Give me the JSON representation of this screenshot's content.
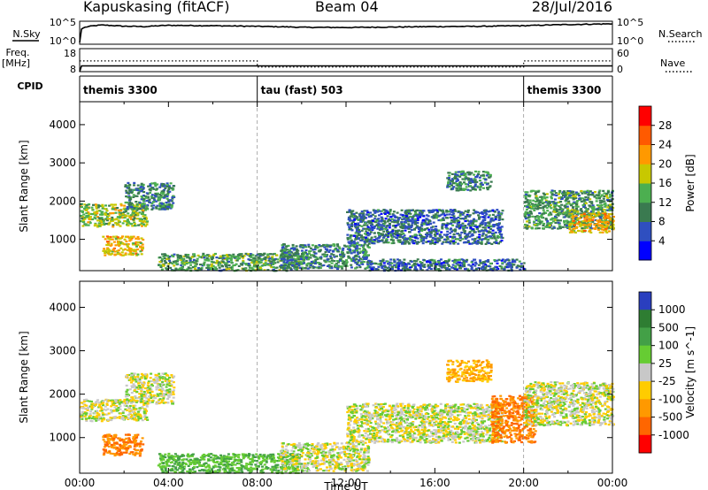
{
  "header": {
    "station": "Kapuskasing (fitACF)",
    "beam": "Beam 04",
    "date": "28/Jul/2016"
  },
  "colors": {
    "power_scale": [
      "#0000ff",
      "#2f4fc0",
      "#3a7a50",
      "#4caf50",
      "#c8c800",
      "#ff9900",
      "#ff5a00",
      "#ff0000"
    ],
    "velocity_scale": [
      "#2a3fbf",
      "#2e7d32",
      "#43a047",
      "#66cc33",
      "#c8c8c8",
      "#ffcc00",
      "#ff9900",
      "#ff6600",
      "#ff0000"
    ],
    "ground_scatter": "#c8c8c8"
  },
  "chart_data": [
    {
      "type": "line",
      "panel": "noise",
      "left_label": "N.Sky",
      "right_label": "N.Search",
      "left_ticks": [
        "10^5",
        "10^0"
      ],
      "right_ticks": [
        "10^5",
        "10^0"
      ],
      "log_scale": true,
      "series": [
        {
          "name": "N.Sky",
          "style": "solid",
          "x": [
            "00:00",
            "00:15",
            "01:00",
            "02:00",
            "03:00",
            "04:00",
            "06:00",
            "08:00",
            "10:00",
            "12:00",
            "14:00",
            "16:00",
            "18:00",
            "20:00",
            "22:00",
            "24:00"
          ],
          "values": [
            1,
            8000,
            30000,
            15000,
            12000,
            25000,
            20000,
            14000,
            8000,
            7000,
            9000,
            12000,
            14000,
            20000,
            40000,
            60000
          ]
        },
        {
          "name": "N.Search",
          "style": "dotted",
          "x": [],
          "values": []
        }
      ]
    },
    {
      "type": "line",
      "panel": "frequency",
      "left_label": "Freq. [MHz]",
      "right_label": "Nave",
      "left_ticks": [
        18,
        8
      ],
      "right_ticks": [
        60,
        0
      ],
      "series": [
        {
          "name": "Freq.",
          "style": "solid",
          "x": [
            "00:00",
            "00:05",
            "08:00",
            "24:00"
          ],
          "values": [
            8,
            10.5,
            10.5,
            10.5
          ]
        },
        {
          "name": "Nave",
          "style": "dotted",
          "x": [
            "00:00",
            "08:00",
            "08:00",
            "20:00",
            "20:00",
            "24:00"
          ],
          "values": [
            28,
            28,
            12,
            12,
            28,
            28
          ]
        }
      ]
    },
    {
      "type": "table",
      "panel": "cpid",
      "label": "CPID",
      "segments": [
        {
          "start": "00:00",
          "end": "08:00",
          "label": "themis 3300"
        },
        {
          "start": "08:00",
          "end": "20:00",
          "label": "tau (fast) 503"
        },
        {
          "start": "20:00",
          "end": "24:00",
          "label": "themis 3300"
        }
      ]
    },
    {
      "type": "heatmap",
      "panel": "power",
      "ylabel": "Slant Range [km]",
      "yticks": [
        1000,
        2000,
        3000,
        4000
      ],
      "ylim": [
        180,
        4600
      ],
      "xlim": [
        "00:00",
        "24:00"
      ],
      "colorbar": {
        "label": "Power [dB]",
        "ticks": [
          4,
          8,
          12,
          16,
          20,
          24,
          28
        ],
        "range": [
          0,
          30
        ]
      },
      "regions": [
        {
          "t0": 0.0,
          "t1": 3.0,
          "r0": 1350,
          "r1": 1950,
          "level": 16
        },
        {
          "t0": 1.0,
          "t1": 2.8,
          "r0": 600,
          "r1": 1100,
          "level": 20
        },
        {
          "t0": 2.0,
          "t1": 4.2,
          "r0": 1800,
          "r1": 2500,
          "level": 10
        },
        {
          "t0": 3.5,
          "t1": 10.0,
          "r0": 200,
          "r1": 650,
          "level": 12
        },
        {
          "t0": 9.0,
          "t1": 13.0,
          "r0": 250,
          "r1": 900,
          "level": 10
        },
        {
          "t0": 12.0,
          "t1": 19.0,
          "r0": 900,
          "r1": 1800,
          "level": 8
        },
        {
          "t0": 13.0,
          "t1": 20.0,
          "r0": 200,
          "r1": 500,
          "level": 8
        },
        {
          "t0": 16.5,
          "t1": 18.5,
          "r0": 2300,
          "r1": 2800,
          "level": 10
        },
        {
          "t0": 20.0,
          "t1": 24.0,
          "r0": 1300,
          "r1": 2300,
          "level": 12
        },
        {
          "t0": 22.0,
          "t1": 24.0,
          "r0": 1200,
          "r1": 1700,
          "level": 20
        }
      ]
    },
    {
      "type": "heatmap",
      "panel": "velocity",
      "ylabel": "Slant Range [km]",
      "xlabel": "Time UT",
      "xticks": [
        "00:00",
        "04:00",
        "08:00",
        "12:00",
        "16:00",
        "20:00",
        "00:00"
      ],
      "yticks": [
        1000,
        2000,
        3000,
        4000
      ],
      "ylim": [
        180,
        4600
      ],
      "xlim": [
        "00:00",
        "24:00"
      ],
      "colorbar": {
        "label": "Velocity [m s^-1]",
        "ticks": [
          1000,
          500,
          100,
          25,
          -25,
          -100,
          -500,
          -1000
        ]
      },
      "regions": [
        {
          "t0": 0.0,
          "t1": 3.0,
          "r0": 1400,
          "r1": 1900,
          "level": 0
        },
        {
          "t0": 1.0,
          "t1": 2.8,
          "r0": 600,
          "r1": 1100,
          "level": -500
        },
        {
          "t0": 2.0,
          "t1": 4.2,
          "r0": 1800,
          "r1": 2500,
          "level": 0
        },
        {
          "t0": 3.5,
          "t1": 10.0,
          "r0": 200,
          "r1": 650,
          "level": 100
        },
        {
          "t0": 9.0,
          "t1": 13.0,
          "r0": 250,
          "r1": 900,
          "level": 0
        },
        {
          "t0": 12.0,
          "t1": 19.0,
          "r0": 900,
          "r1": 1800,
          "level": 0
        },
        {
          "t0": 16.5,
          "t1": 18.5,
          "r0": 2300,
          "r1": 2800,
          "level": -100
        },
        {
          "t0": 18.5,
          "t1": 20.5,
          "r0": 900,
          "r1": 2000,
          "level": -500
        },
        {
          "t0": 20.0,
          "t1": 24.0,
          "r0": 1300,
          "r1": 2300,
          "level": 0
        }
      ]
    }
  ]
}
